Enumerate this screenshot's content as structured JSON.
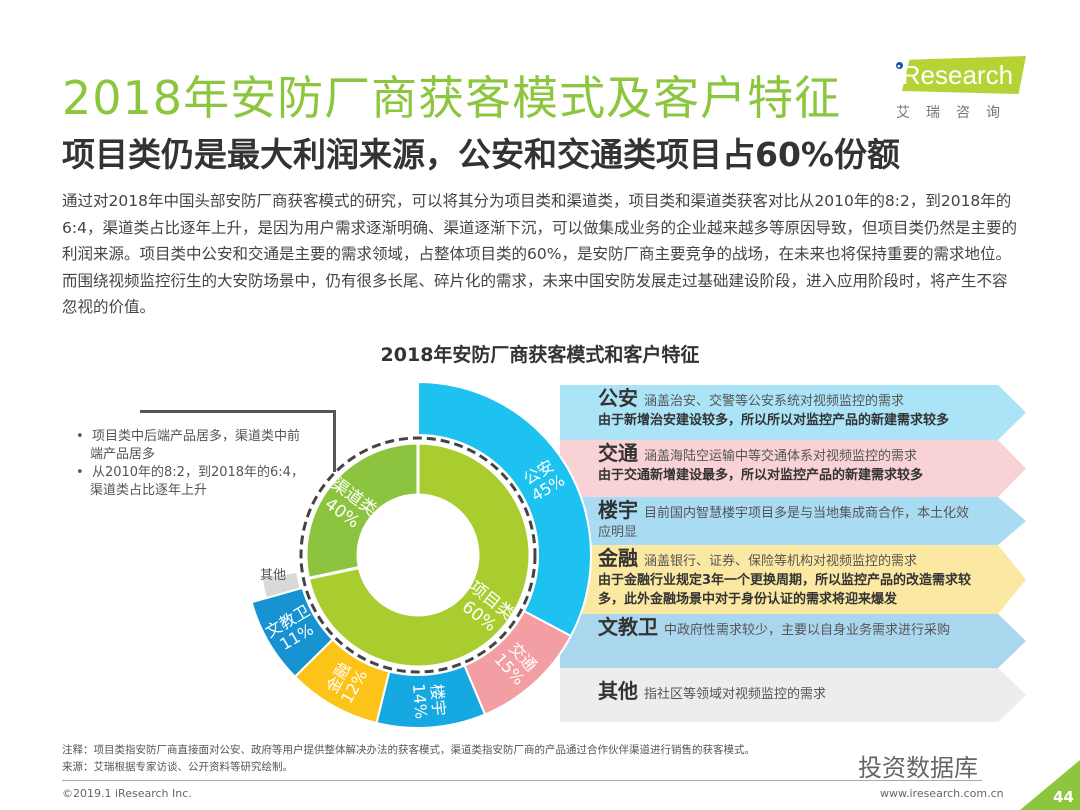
{
  "header": {
    "title": "2018年安防厂商获客模式及客户特征",
    "subtitle": "项目类仍是最大利润来源，公安和交通类项目占60%份额"
  },
  "logo": {
    "text": "iResearch",
    "cn": "艾瑞咨询"
  },
  "body": "通过对2018年中国头部安防厂商获客模式的研究，可以将其分为项目类和渠道类，项目类和渠道类获客对比从2010年的8:2，到2018年的6:4，渠道类占比逐年上升，是因为用户需求逐渐明确、渠道逐渐下沉，可以做集成业务的企业越来越多等原因导致，但项目类仍然是主要的利润来源。项目类中公安和交通是主要的需求领域，占整体项目类的60%，是安防厂商主要竞争的战场，在未来也将保持重要的需求地位。而围绕视频监控衍生的大安防场景中，仍有很多长尾、碎片化的需求，未来中国安防发展走过基础建设阶段，进入应用阶段时，将产生不容忽视的价值。",
  "chart_data": {
    "type": "pie",
    "title": "2018年安防厂商获客模式和客户特征",
    "inner": [
      {
        "name": "项目类",
        "value": 60,
        "label": "60%",
        "color": "#a9cc2e"
      },
      {
        "name": "渠道类",
        "value": 40,
        "label": "40%",
        "color": "#8dc43f"
      }
    ],
    "outer": [
      {
        "name": "公安",
        "value": 45,
        "label": "45%",
        "color": "#1ec2f0"
      },
      {
        "name": "交通",
        "value": 15,
        "label": "15%",
        "color": "#f29ea3"
      },
      {
        "name": "楼宇",
        "value": 14,
        "label": "14%",
        "color": "#16a9e1"
      },
      {
        "name": "金融",
        "value": 12,
        "label": "12%",
        "color": "#fcc419"
      },
      {
        "name": "文教卫",
        "value": 11,
        "label": "11%",
        "color": "#1693d0"
      },
      {
        "name": "其他",
        "value": 3,
        "label": "",
        "color": "#d9d9d9"
      }
    ],
    "other_label": "其他"
  },
  "notes": [
    "项目类中后端产品居多，渠道类中前端产品居多",
    "从2010年的8:2，到2018年的6:4，渠道类占比逐年上升"
  ],
  "rows": [
    {
      "key": "公安",
      "desc": "涵盖治安、交警等公安系统对视频监控的需求",
      "bold": "由于新增治安建设较多，所以所以对监控产品的新建需求较多",
      "color": "#abe4f7"
    },
    {
      "key": "交通",
      "desc": "涵盖海陆空运输中等交通体系对视频监控的需求",
      "bold": "由于交通新增建设最多，所以对监控产品的新建需求较多",
      "color": "#f9d2d5"
    },
    {
      "key": "楼宇",
      "desc": "目前国内智慧楼宇项目多是与当地集成商合作，本土化效应明显",
      "bold": "",
      "color": "#a9dcf3"
    },
    {
      "key": "金融",
      "desc": "涵盖银行、证券、保险等机构对视频监控的需求",
      "bold": "由于金融行业规定3年一个更换周期，所以监控产品的改造需求较多，此外金融场景中对于身份认证的需求将迎来爆发",
      "color": "#fbe8a3"
    },
    {
      "key": "文教卫",
      "desc": "中政府性需求较少，主要以自身业务需求进行采购",
      "bold": "",
      "color": "#abd7ee"
    },
    {
      "key": "其他",
      "desc": "指社区等领域对视频监控的需求",
      "bold": "",
      "color": "#ededed"
    }
  ],
  "footer": {
    "note": "注释：项目类指安防厂商直接面对公安、政府等用户提供整体解决办法的获客模式，渠道类指安防厂商的产品通过合作伙伴渠道进行销售的获客模式。",
    "source": "来源：艾瑞根据专家访谈、公开资料等研究绘制。",
    "copyright": "©2019.1 iResearch Inc.",
    "website": "www.iresearch.com.cn",
    "page": "44",
    "watermark": "投资数据库"
  }
}
